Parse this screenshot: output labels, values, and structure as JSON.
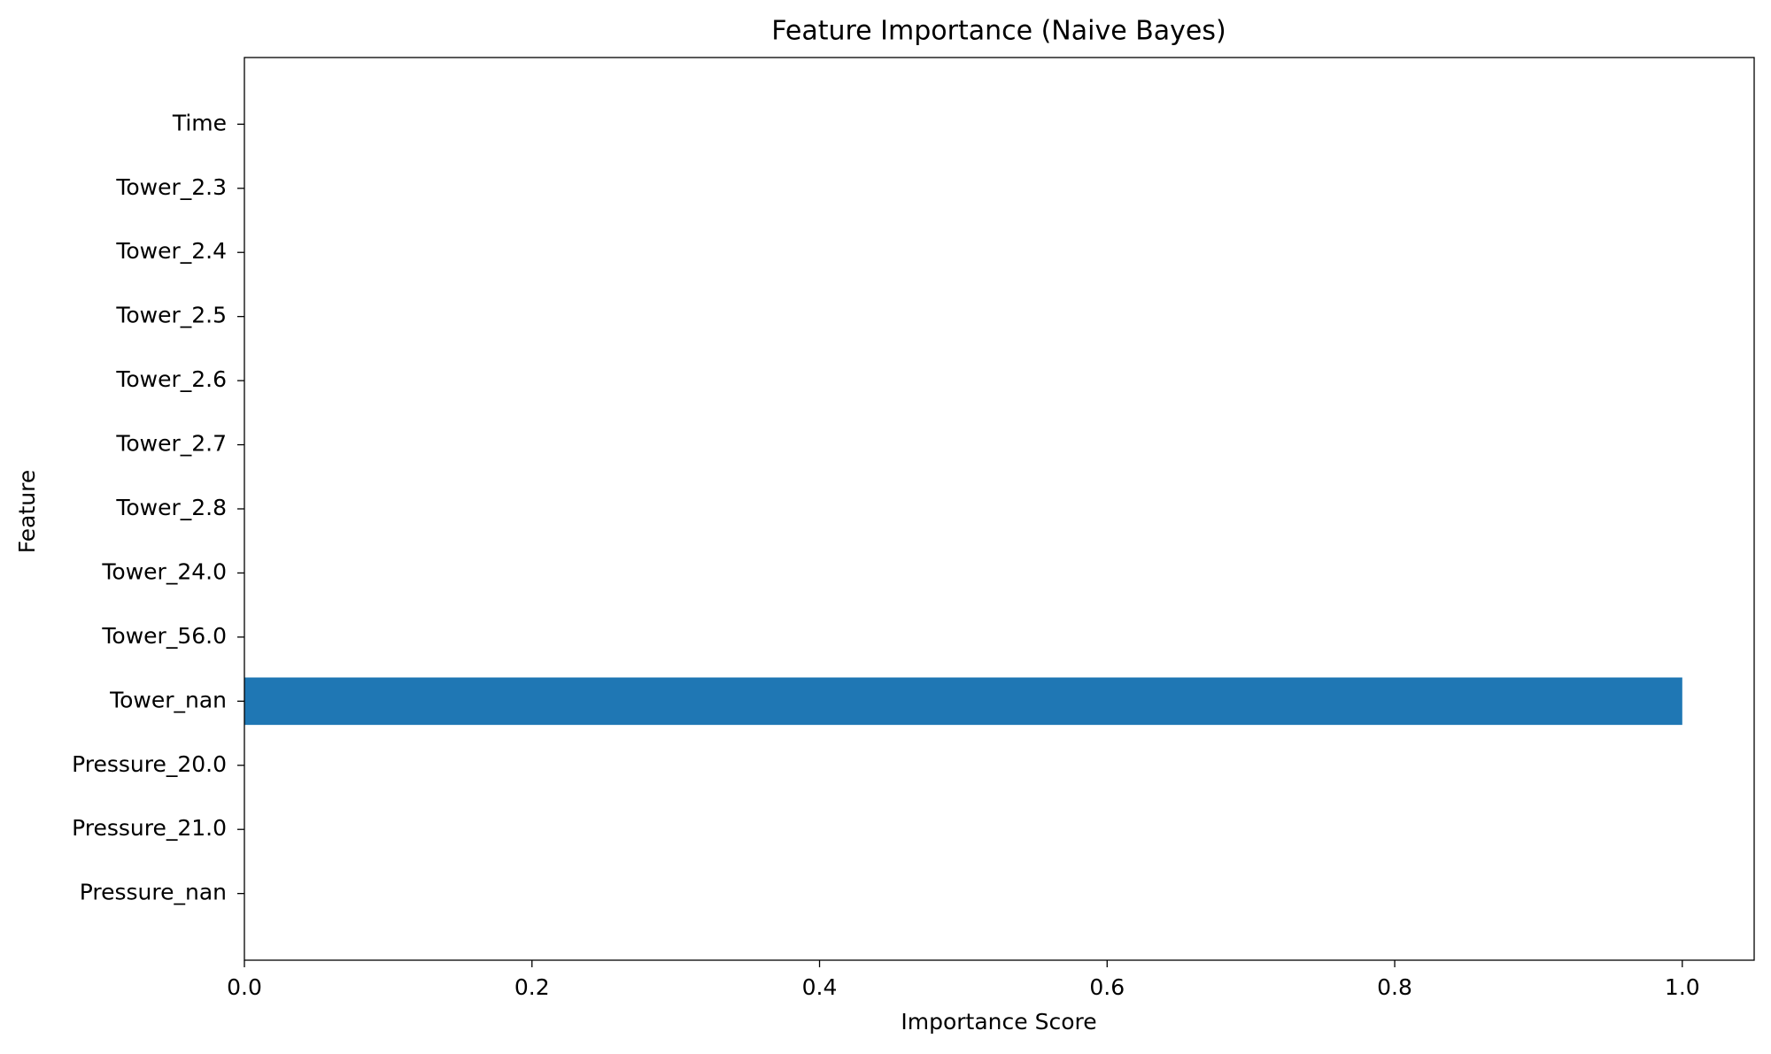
{
  "chart_data": {
    "type": "barh",
    "title": "Feature Importance (Naive Bayes)",
    "x_label": "Importance Score",
    "y_label": "Feature",
    "categories": [
      "Time",
      "Tower_2.3",
      "Tower_2.4",
      "Tower_2.5",
      "Tower_2.6",
      "Tower_2.7",
      "Tower_2.8",
      "Tower_24.0",
      "Tower_56.0",
      "Tower_nan",
      "Pressure_20.0",
      "Pressure_21.0",
      "Pressure_nan"
    ],
    "values": [
      0,
      0,
      0,
      0,
      0,
      0,
      0,
      0,
      0,
      1.0,
      0,
      0,
      0
    ],
    "color": "#1f77b4",
    "xlim": [
      0,
      1.05
    ],
    "xticks": [
      {
        "value": 0,
        "label": "0.0"
      },
      0.2,
      0.4,
      0.6,
      0.8,
      {
        "value": 1,
        "label": "1.0"
      }
    ],
    "grid": false
  }
}
